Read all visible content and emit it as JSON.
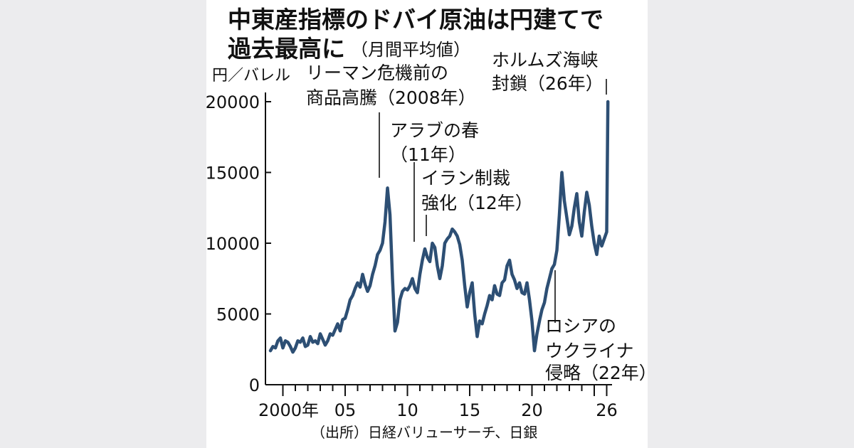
{
  "chart_data": {
    "type": "line",
    "title_line1": "中東産指標のドバイ原油は円建てで",
    "title_line2": "過去最高に",
    "title_note": "（月間平均値）",
    "ylabel": "円／バレル",
    "ylim": [
      0,
      20000
    ],
    "yticks": [
      0,
      5000,
      10000,
      15000,
      20000
    ],
    "ytick_labels": [
      "0",
      "5000",
      "10000",
      "15000",
      "20000"
    ],
    "xlim": [
      1999.0,
      2026.2
    ],
    "xticks": [
      2000,
      2005,
      2010,
      2015,
      2020,
      2026
    ],
    "xtick_labels": [
      "2000年",
      "05",
      "10",
      "15",
      "20",
      "26"
    ],
    "source": "（出所）日経バリューサーチ、日銀",
    "line_color": "#2d4f74",
    "annotations": [
      {
        "lines": [
          "リーマン危機前の",
          "商品高騰（2008年）"
        ],
        "x": 2008.0
      },
      {
        "lines": [
          "アラブの春",
          "（11年）"
        ],
        "x": 2011.0
      },
      {
        "lines": [
          "イラン制裁",
          "強化（12年）"
        ],
        "x": 2012.1
      },
      {
        "lines": [
          "ホルムズ海峡",
          "封鎖（26年）"
        ],
        "x": 2026.0
      },
      {
        "lines": [
          "ロシアの",
          "ウクライナ",
          "侵略（22年）"
        ],
        "x": 2022.0
      }
    ],
    "series": [
      {
        "x": [
          1999.0,
          1999.2,
          1999.4,
          1999.6,
          1999.8,
          2000.0,
          2000.2,
          2000.4,
          2000.6,
          2000.8,
          2001.0,
          2001.2,
          2001.4,
          2001.6,
          2001.8,
          2002.0,
          2002.2,
          2002.4,
          2002.6,
          2002.8,
          2003.0,
          2003.2,
          2003.4,
          2003.6,
          2003.8,
          2004.0,
          2004.2,
          2004.4,
          2004.6,
          2004.8,
          2005.0,
          2005.2,
          2005.4,
          2005.6,
          2005.8,
          2006.0,
          2006.2,
          2006.4,
          2006.6,
          2006.8,
          2007.0,
          2007.2,
          2007.4,
          2007.6,
          2007.8,
          2008.0,
          2008.2,
          2008.4,
          2008.6,
          2008.8,
          2009.0,
          2009.2,
          2009.4,
          2009.6,
          2009.8,
          2010.0,
          2010.2,
          2010.4,
          2010.6,
          2010.8,
          2011.0,
          2011.2,
          2011.4,
          2011.6,
          2011.8,
          2012.0,
          2012.2,
          2012.4,
          2012.6,
          2012.8,
          2013.0,
          2013.2,
          2013.4,
          2013.6,
          2013.8,
          2014.0,
          2014.2,
          2014.4,
          2014.6,
          2014.8,
          2015.0,
          2015.2,
          2015.4,
          2015.6,
          2015.8,
          2016.0,
          2016.2,
          2016.4,
          2016.6,
          2016.8,
          2017.0,
          2017.2,
          2017.4,
          2017.6,
          2017.8,
          2018.0,
          2018.2,
          2018.4,
          2018.6,
          2018.8,
          2019.0,
          2019.2,
          2019.4,
          2019.6,
          2019.8,
          2020.0,
          2020.2,
          2020.4,
          2020.6,
          2020.8,
          2021.0,
          2021.2,
          2021.4,
          2021.6,
          2021.8,
          2022.0,
          2022.2,
          2022.4,
          2022.6,
          2022.8,
          2023.0,
          2023.2,
          2023.4,
          2023.6,
          2023.8,
          2024.0,
          2024.2,
          2024.4,
          2024.6,
          2024.8,
          2025.0,
          2025.2,
          2025.4,
          2025.6,
          2025.8,
          2026.0,
          2026.1
        ],
        "y": [
          2400,
          2700,
          2600,
          3100,
          3300,
          2600,
          3100,
          3000,
          2700,
          2300,
          2600,
          3100,
          3000,
          3300,
          2700,
          2800,
          3400,
          3000,
          3100,
          2900,
          3600,
          3200,
          2800,
          3100,
          3600,
          3500,
          3900,
          4300,
          3800,
          4600,
          4700,
          5300,
          6000,
          6300,
          6800,
          7200,
          6900,
          7800,
          7100,
          6600,
          7000,
          7800,
          8400,
          9200,
          9500,
          10000,
          11500,
          13900,
          12000,
          7500,
          3800,
          4400,
          6000,
          6600,
          6800,
          6700,
          7000,
          7500,
          6800,
          6500,
          7800,
          8800,
          9600,
          9000,
          8700,
          10000,
          9700,
          8400,
          7500,
          8400,
          10000,
          10300,
          10500,
          11000,
          10800,
          10500,
          9900,
          8800,
          7000,
          5500,
          6500,
          7200,
          5000,
          3400,
          4500,
          4300,
          5000,
          5600,
          6300,
          6000,
          7000,
          6400,
          6300,
          7200,
          7400,
          8400,
          8800,
          7800,
          7400,
          6800,
          7200,
          6500,
          6400,
          7200,
          6000,
          4500,
          2400,
          3600,
          4500,
          5300,
          5800,
          6800,
          7500,
          8200,
          8500,
          9500,
          12000,
          15000,
          13000,
          11800,
          10600,
          11200,
          12500,
          13500,
          11500,
          10500,
          12200,
          13600,
          12700,
          11200,
          10000,
          9200,
          10500,
          9800,
          10300,
          10800,
          20000
        ]
      }
    ]
  }
}
